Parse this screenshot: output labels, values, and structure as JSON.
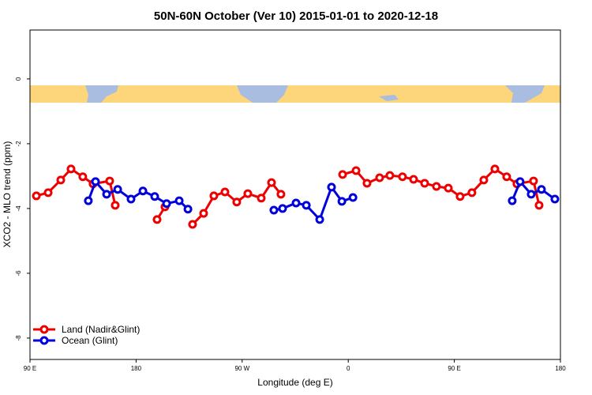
{
  "chart_data": {
    "type": "line",
    "title": "50N-60N October (Ver 10)   2015-01-01 to 2020-12-18",
    "x_label": "Longitude (deg E)",
    "y_label": "XCO2 - MLO trend (ppm)",
    "xlim": [
      90,
      540
    ],
    "ylim": [
      -8.66,
      1.51
    ],
    "xticks": [
      {
        "value": 90,
        "label": "90 E"
      },
      {
        "value": 180,
        "label": "180"
      },
      {
        "value": 270,
        "label": "90 W"
      },
      {
        "value": 360,
        "label": "0"
      },
      {
        "value": 450,
        "label": "90 E"
      },
      {
        "value": 540,
        "label": "180"
      }
    ],
    "yticks": [
      0,
      -2,
      -4,
      -6,
      -8
    ],
    "legend": "bottom-left",
    "series": [
      {
        "name": "Land (Nadir&Glint)",
        "color": "#ee0000",
        "x": [
          95.4,
          105.4,
          116.1,
          124.8,
          134.8,
          143.5,
          157.6,
          162.3,
          null,
          197.8,
          204.5,
          null,
          227.9,
          237.3,
          246.0,
          255.4,
          265.4,
          274.8,
          286.2,
          294.9,
          302.9,
          null,
          355.2,
          366.6,
          375.9,
          386.6,
          395.3,
          406.0,
          415.4,
          424.8,
          434.8,
          444.9,
          454.9,
          464.9,
          475.0,
          484.4,
          494.4,
          503.1,
          517.2,
          521.9
        ],
        "values": [
          -3.61,
          -3.51,
          -3.12,
          -2.78,
          -3.02,
          -3.24,
          -3.15,
          -3.9,
          null,
          -4.34,
          -3.95,
          null,
          -4.49,
          -4.15,
          -3.61,
          -3.49,
          -3.8,
          -3.54,
          -3.68,
          -3.2,
          -3.56,
          null,
          -2.95,
          -2.83,
          -3.22,
          -3.05,
          -2.98,
          -3.02,
          -3.1,
          -3.22,
          -3.32,
          -3.37,
          -3.63,
          -3.51,
          -3.12,
          -2.78,
          -3.02,
          -3.24,
          -3.15,
          -3.9
        ]
      },
      {
        "name": "Ocean (Glint)",
        "color": "#0000dd",
        "x": [
          139.5,
          145.6,
          155.0,
          164.4,
          175.7,
          185.8,
          195.8,
          205.9,
          216.6,
          224.0,
          null,
          296.9,
          304.3,
          315.7,
          324.4,
          335.8,
          345.8,
          354.6,
          364.0,
          null,
          499.1,
          505.8,
          515.2,
          523.9,
          535.3
        ],
        "values": [
          -3.76,
          -3.17,
          -3.56,
          -3.41,
          -3.71,
          -3.46,
          -3.63,
          -3.85,
          -3.76,
          -4.02,
          null,
          -4.05,
          -4.0,
          -3.83,
          -3.9,
          -4.34,
          -3.34,
          -3.78,
          -3.66,
          null,
          -3.76,
          -3.17,
          -3.56,
          -3.41,
          -3.71
        ]
      }
    ]
  }
}
